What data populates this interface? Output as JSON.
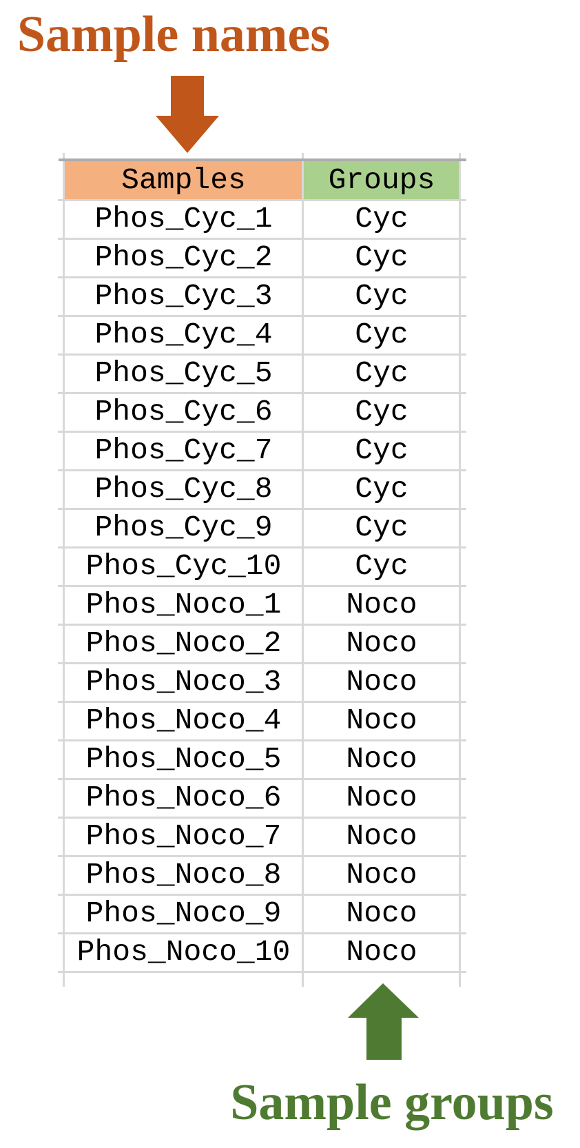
{
  "annotations": {
    "top_label": "Sample names",
    "bottom_label": "Sample groups"
  },
  "icons": {
    "down_arrow": "arrow-down",
    "up_arrow": "arrow-up"
  },
  "colors": {
    "annotation_orange": "#C0561A",
    "annotation_green": "#4E7B31",
    "samples_header_bg": "#F4B07F",
    "groups_header_bg": "#A9D08D",
    "gridline": "#D8D8D8",
    "table_outer_border": "#ACACAC",
    "cell_text": "#000000"
  },
  "table": {
    "columns": [
      "Samples",
      "Groups"
    ],
    "rows": [
      {
        "sample": "Phos_Cyc_1",
        "group": "Cyc"
      },
      {
        "sample": "Phos_Cyc_2",
        "group": "Cyc"
      },
      {
        "sample": "Phos_Cyc_3",
        "group": "Cyc"
      },
      {
        "sample": "Phos_Cyc_4",
        "group": "Cyc"
      },
      {
        "sample": "Phos_Cyc_5",
        "group": "Cyc"
      },
      {
        "sample": "Phos_Cyc_6",
        "group": "Cyc"
      },
      {
        "sample": "Phos_Cyc_7",
        "group": "Cyc"
      },
      {
        "sample": "Phos_Cyc_8",
        "group": "Cyc"
      },
      {
        "sample": "Phos_Cyc_9",
        "group": "Cyc"
      },
      {
        "sample": "Phos_Cyc_10",
        "group": "Cyc"
      },
      {
        "sample": "Phos_Noco_1",
        "group": "Noco"
      },
      {
        "sample": "Phos_Noco_2",
        "group": "Noco"
      },
      {
        "sample": "Phos_Noco_3",
        "group": "Noco"
      },
      {
        "sample": "Phos_Noco_4",
        "group": "Noco"
      },
      {
        "sample": "Phos_Noco_5",
        "group": "Noco"
      },
      {
        "sample": "Phos_Noco_6",
        "group": "Noco"
      },
      {
        "sample": "Phos_Noco_7",
        "group": "Noco"
      },
      {
        "sample": "Phos_Noco_8",
        "group": "Noco"
      },
      {
        "sample": "Phos_Noco_9",
        "group": "Noco"
      },
      {
        "sample": "Phos_Noco_10",
        "group": "Noco"
      }
    ]
  }
}
